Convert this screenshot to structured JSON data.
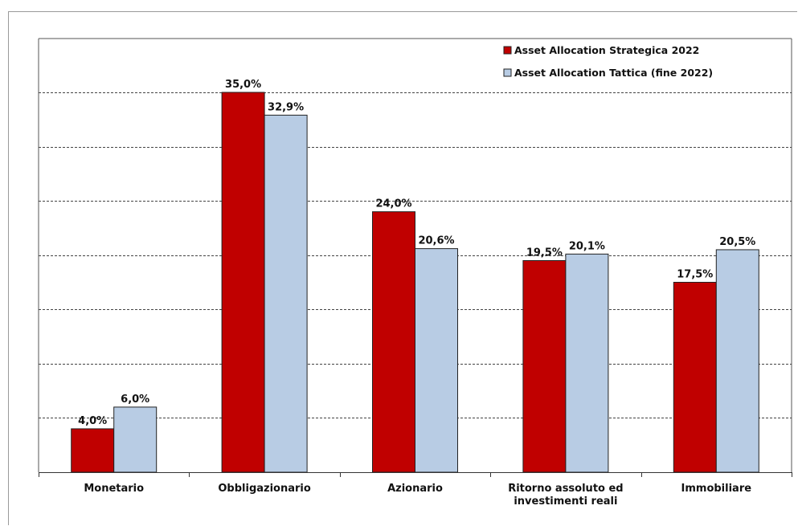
{
  "chart_data": {
    "type": "bar",
    "categories": [
      [
        "Monetario"
      ],
      [
        "Obbligazionario"
      ],
      [
        "Azionario"
      ],
      [
        "Ritorno assoluto ed",
        "investimenti reali"
      ],
      [
        "Immobiliare"
      ]
    ],
    "series": [
      {
        "name": "Asset Allocation Strategica 2022",
        "values": [
          4.0,
          35.0,
          24.0,
          19.5,
          17.5
        ],
        "labels": [
          "4,0%",
          "35,0%",
          "24,0%",
          "19,5%",
          "17,5%"
        ],
        "color": "#c00000"
      },
      {
        "name": "Asset Allocation Tattica (fine 2022)",
        "values": [
          6.0,
          32.9,
          20.6,
          20.1,
          20.5
        ],
        "labels": [
          "6,0%",
          "32,9%",
          "20,6%",
          "20,1%",
          "20,5%"
        ],
        "color": "#b8cce4"
      }
    ],
    "ylim": [
      0,
      35
    ],
    "gridlines": [
      5,
      10,
      15,
      20,
      25,
      30,
      35
    ],
    "grid": true,
    "legend_position": "top-right"
  }
}
